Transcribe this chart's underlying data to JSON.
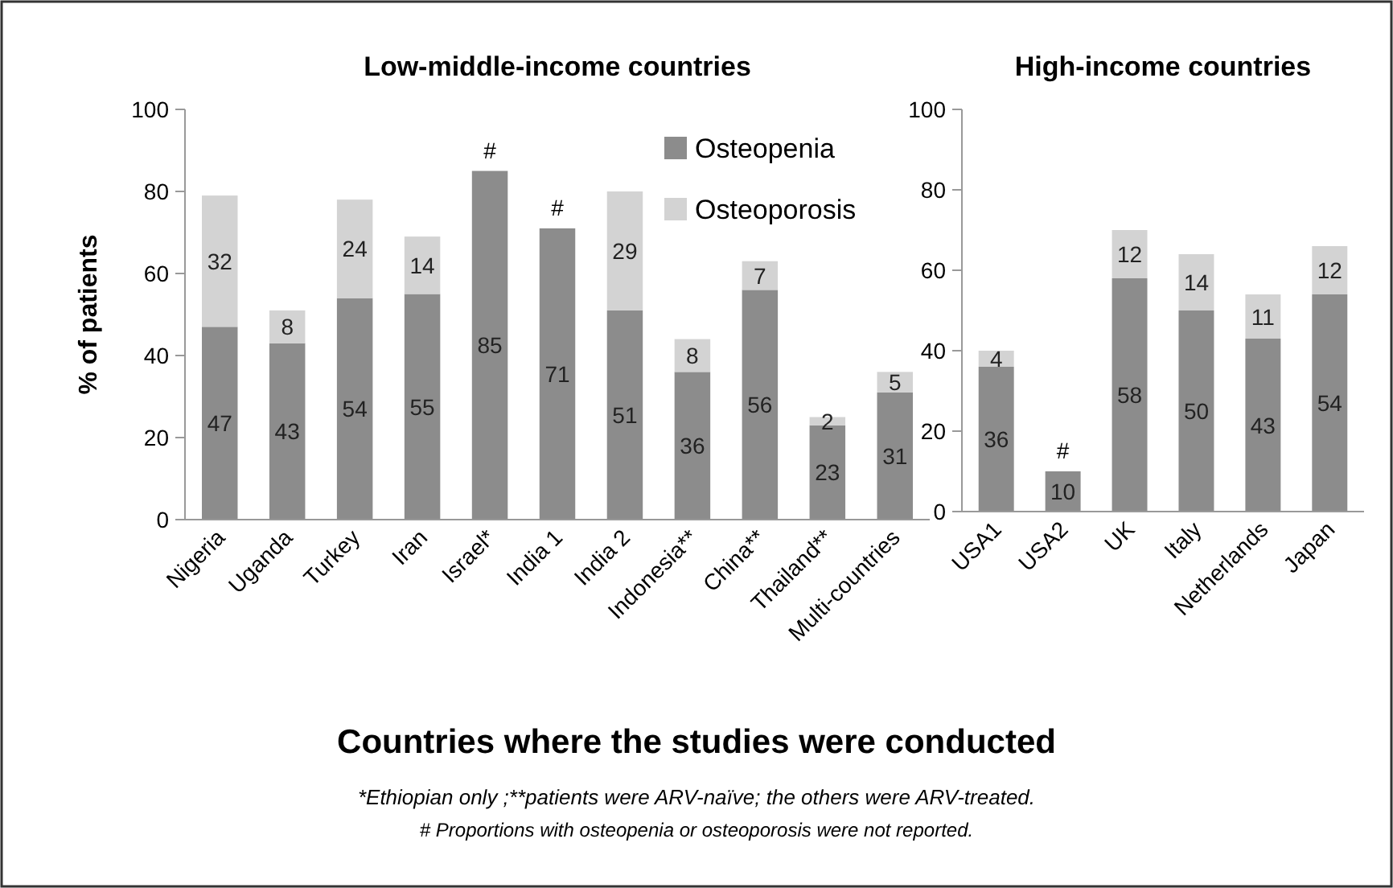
{
  "chart_data": [
    {
      "type": "bar",
      "title": "Low-middle-income countries",
      "ylabel": "% of patients",
      "xlabel": "Countries where the studies were conducted",
      "categories": [
        "Nigeria",
        "Uganda",
        "Turkey",
        "Iran",
        "Israel*",
        "India 1",
        "India 2",
        "Indonesia**",
        "China**",
        "Thailand**",
        "Multi-countries"
      ],
      "series": [
        {
          "name": "Osteopenia",
          "color": "#8c8c8c",
          "values": [
            47,
            43,
            54,
            55,
            85,
            71,
            51,
            36,
            56,
            23,
            31
          ]
        },
        {
          "name": "Osteoporosis",
          "color": "#d3d3d3",
          "values": [
            32,
            8,
            24,
            14,
            null,
            null,
            29,
            8,
            7,
            2,
            5
          ]
        }
      ],
      "stacked": true,
      "data_labels": true,
      "ylim": [
        0,
        100
      ],
      "yticks": [
        0,
        20,
        40,
        60,
        80,
        100
      ],
      "legend": "top right",
      "annotations": [
        {
          "text": "#",
          "x": "Israel*",
          "y": 85
        },
        {
          "text": "#",
          "x": "India 1",
          "y": 71
        },
        "*Ethiopian only ;**patients were ARV-naïve; the others were ARV-treated.",
        "# Proportions with osteopenia or osteoporosis were not reported."
      ]
    },
    {
      "type": "bar",
      "title": "High-income countries",
      "categories": [
        "USA1",
        "USA2",
        "UK",
        "Italy",
        "Netherlands",
        "Japan"
      ],
      "series": [
        {
          "color": "#8c8c8c",
          "values": [
            36,
            10,
            58,
            50,
            43,
            54
          ]
        },
        {
          "color": "#d3d3d3",
          "values": [
            4,
            null,
            12,
            14,
            11,
            12
          ]
        }
      ],
      "stacked": true,
      "data_labels": true,
      "ylim": [
        0,
        100
      ],
      "yticks": [
        0,
        20,
        40,
        60,
        80,
        100
      ],
      "annotations": [
        {
          "text": "#",
          "x": "USA2",
          "y": 10
        }
      ]
    }
  ]
}
